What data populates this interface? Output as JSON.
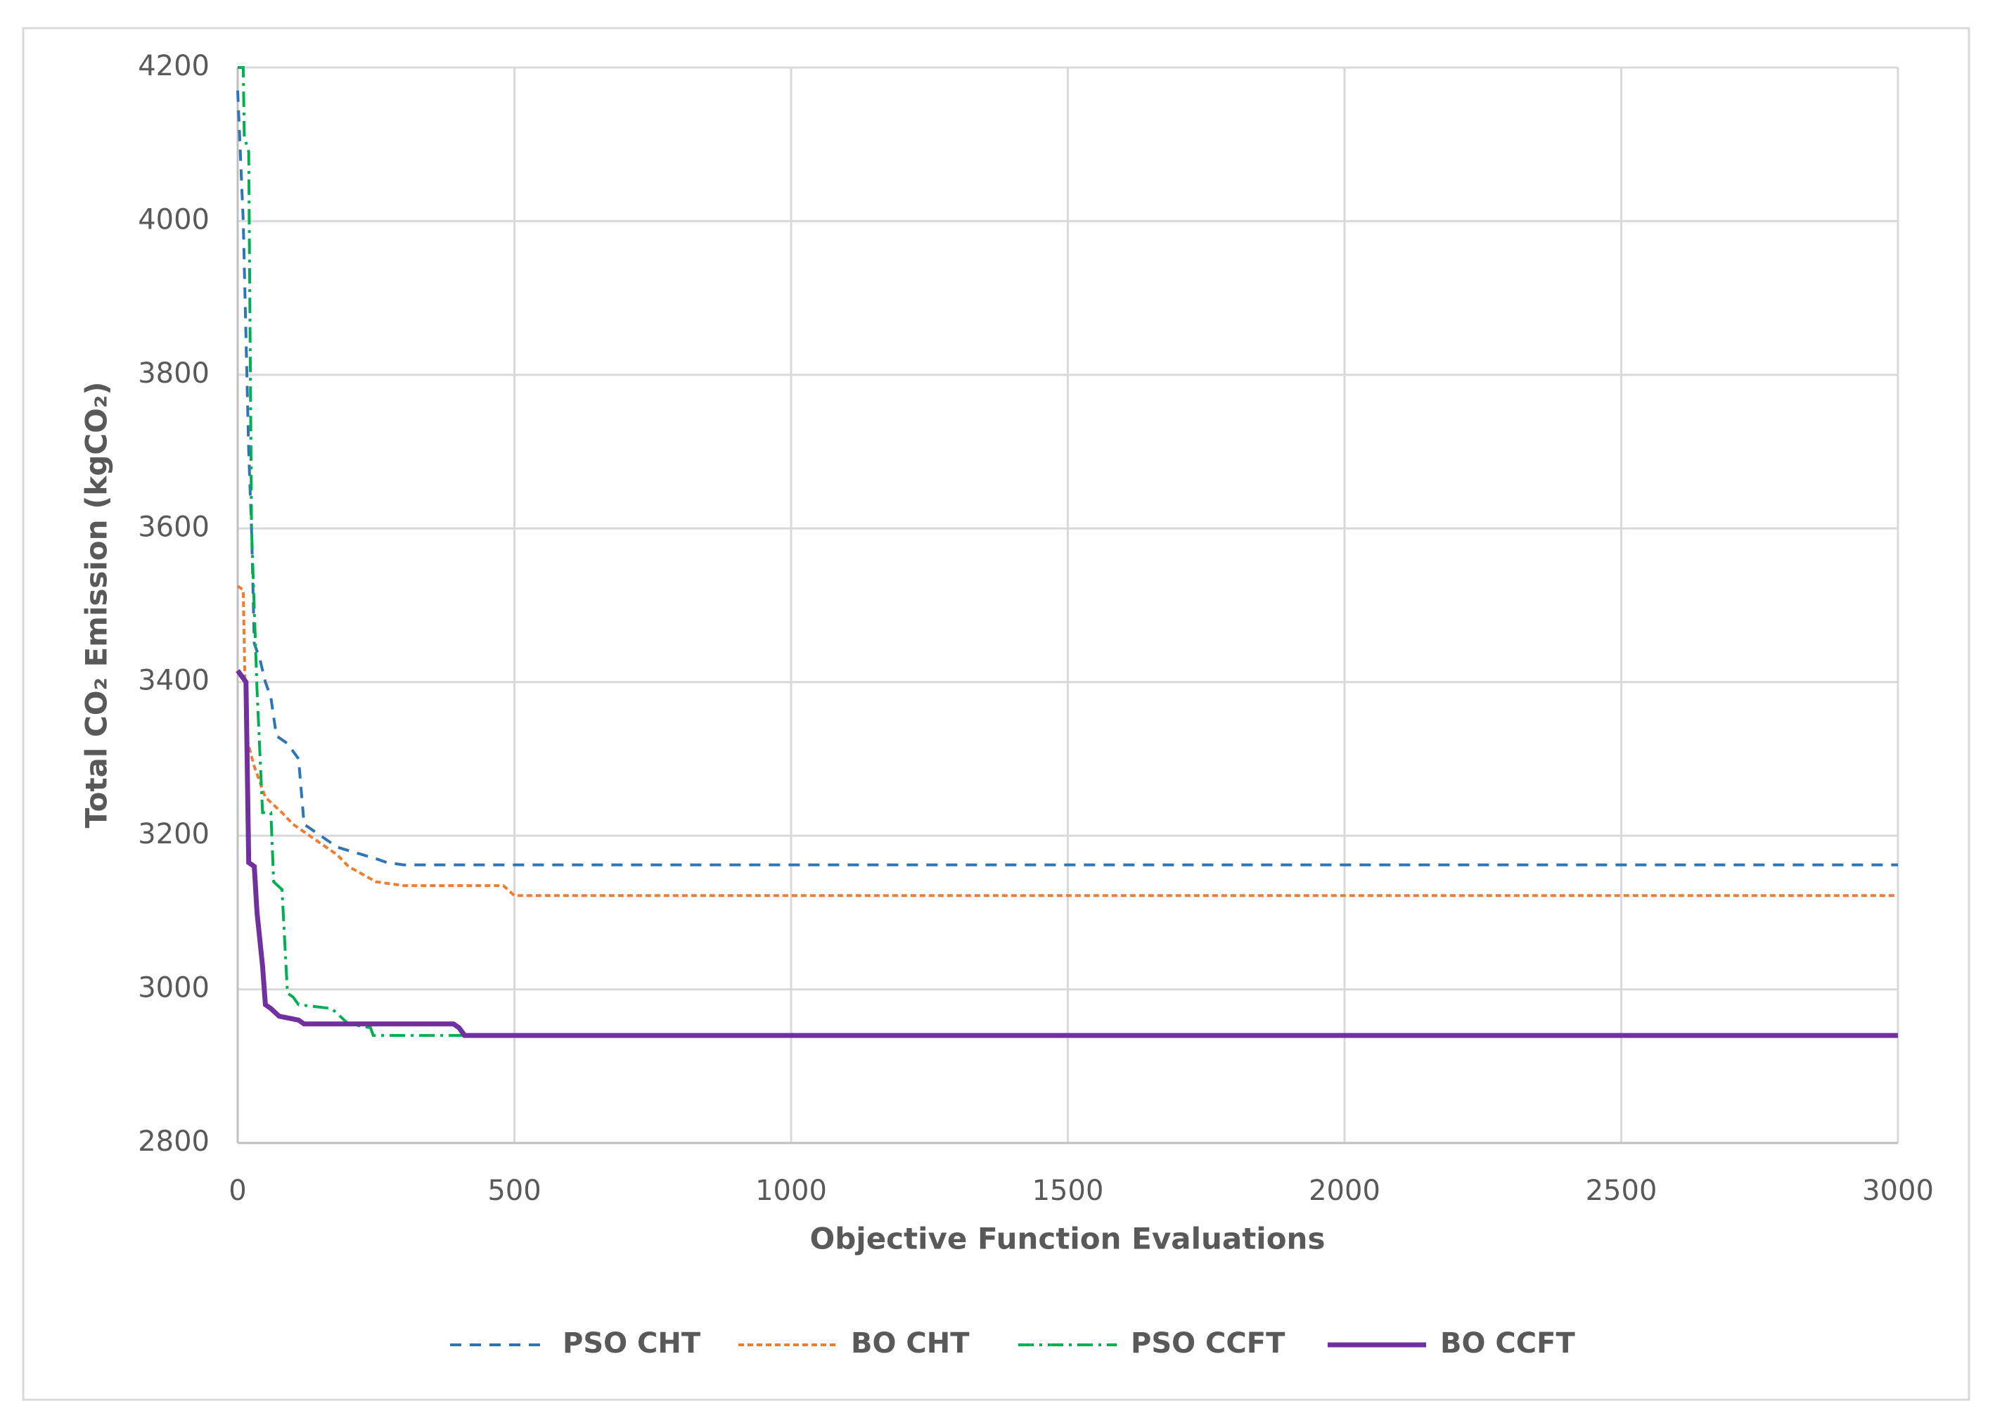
{
  "chart_data": {
    "type": "line",
    "xlabel": "Objective Function Evaluations",
    "ylabel": "Total CO₂ Emission (kgCO₂)",
    "xlim": [
      0,
      3000
    ],
    "ylim": [
      2800,
      4200
    ],
    "xticks": [
      0,
      500,
      1000,
      1500,
      2000,
      2500,
      3000
    ],
    "yticks": [
      2800,
      3000,
      3200,
      3400,
      3600,
      3800,
      4000,
      4200
    ],
    "grid": true,
    "legend": "bottom",
    "series": [
      {
        "name": "PSO CHT",
        "color": "#2e75b6",
        "dash": "dashed",
        "x": [
          0,
          10,
          15,
          20,
          25,
          30,
          40,
          50,
          60,
          70,
          90,
          110,
          120,
          160,
          180,
          250,
          270,
          300,
          3000
        ],
        "values": [
          4170,
          4000,
          3850,
          3700,
          3600,
          3450,
          3430,
          3400,
          3380,
          3330,
          3320,
          3300,
          3215,
          3195,
          3185,
          3170,
          3165,
          3162,
          3162
        ]
      },
      {
        "name": "BO CHT",
        "color": "#ed7d31",
        "dash": "dotted",
        "x": [
          0,
          10,
          15,
          30,
          50,
          80,
          100,
          150,
          180,
          200,
          250,
          300,
          480,
          500,
          3000
        ],
        "values": [
          3525,
          3520,
          3330,
          3290,
          3250,
          3230,
          3215,
          3190,
          3175,
          3160,
          3140,
          3135,
          3135,
          3122,
          3122
        ]
      },
      {
        "name": "PSO CCFT",
        "color": "#00b050",
        "dash": "dashdot",
        "x": [
          0,
          10,
          12,
          20,
          25,
          35,
          45,
          60,
          65,
          80,
          90,
          100,
          110,
          170,
          200,
          240,
          245,
          400,
          3000
        ],
        "values": [
          4200,
          4200,
          4110,
          4090,
          3600,
          3390,
          3230,
          3230,
          3140,
          3130,
          2995,
          2990,
          2980,
          2975,
          2955,
          2950,
          2940,
          2940,
          2940
        ]
      },
      {
        "name": "BO CCFT",
        "color": "#7030a0",
        "dash": "solid",
        "x": [
          0,
          15,
          20,
          30,
          35,
          45,
          50,
          60,
          75,
          110,
          120,
          390,
          400,
          410,
          3000
        ],
        "values": [
          3415,
          3400,
          3165,
          3160,
          3100,
          3030,
          2980,
          2975,
          2965,
          2960,
          2955,
          2955,
          2950,
          2940,
          2940
        ]
      }
    ]
  }
}
